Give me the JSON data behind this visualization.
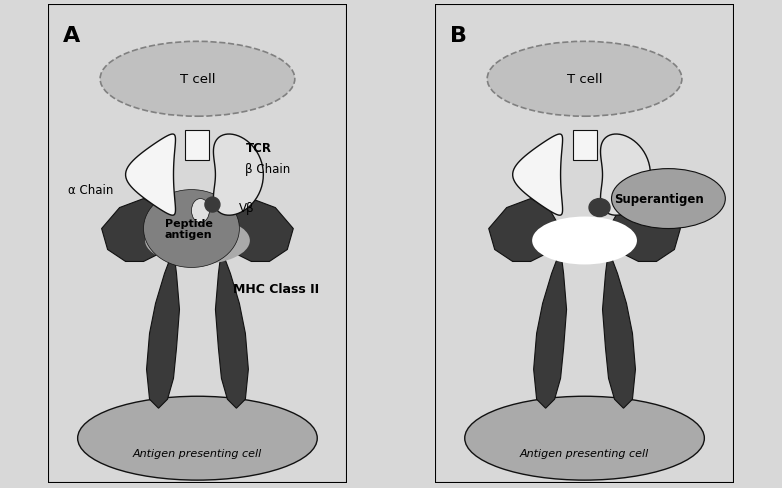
{
  "bg_color": "#ffffff",
  "panel_bg": "#ffffff",
  "outer_bg": "#d8d8d8",
  "dark_color": "#3a3a3a",
  "med_gray": "#606060",
  "light_gray": "#aaaaaa",
  "lighter_gray": "#c0c0c0",
  "tcr_white": "#f5f5f5",
  "tcr_light": "#e0e0e0",
  "peptide_gray": "#808080",
  "super_gray": "#a0a0a0",
  "border_color": "#111111",
  "panel_A_label": "A",
  "panel_B_label": "B",
  "tcell_label": "T cell",
  "tcr_label": "TCR",
  "alpha_chain_label": "α Chain",
  "beta_chain_label": "β Chain",
  "peptide_label": "Peptide\nantigen",
  "vbeta_label": "Vβ",
  "mhc_label": "MHC Class II",
  "apc_label": "Antigen presenting cell",
  "superantigen_label": "Superantigen"
}
